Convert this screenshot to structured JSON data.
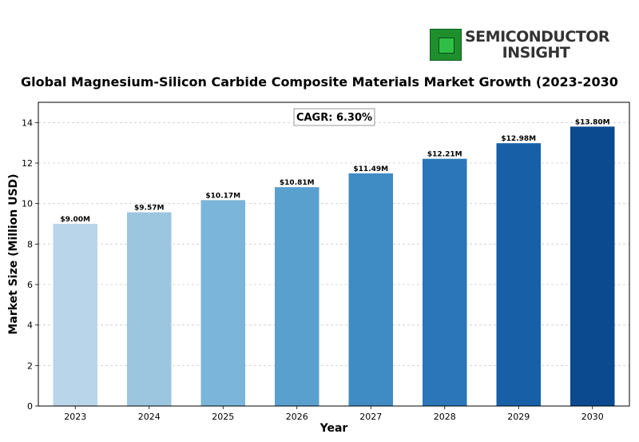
{
  "logo": {
    "line1": "SEMICONDUCTOR",
    "line2": "INSIGHT"
  },
  "chart_data": {
    "type": "bar",
    "title": "Global Magnesium-Silicon Carbide Composite Materials Market Growth (2023-2030",
    "xlabel": "Year",
    "ylabel": "Market Size (Million USD)",
    "annotation": "CAGR: 6.30%",
    "categories": [
      "2023",
      "2024",
      "2025",
      "2026",
      "2027",
      "2028",
      "2029",
      "2030"
    ],
    "values": [
      9.0,
      9.57,
      10.17,
      10.81,
      11.49,
      12.21,
      12.98,
      13.8
    ],
    "data_labels": [
      "$9.00M",
      "$9.57M",
      "$10.17M",
      "$10.81M",
      "$11.49M",
      "$12.21M",
      "$12.98M",
      "$13.80M"
    ],
    "ylim": [
      0,
      15
    ],
    "yticks": [
      0,
      2,
      4,
      6,
      8,
      10,
      12,
      14
    ],
    "grid": "horizontal dashed",
    "colors": [
      "#b9d5ea",
      "#9cc6e0",
      "#7bb5d9",
      "#5aa0cf",
      "#3f8bc4",
      "#2a76b8",
      "#1760a8",
      "#0b4a8e"
    ]
  }
}
